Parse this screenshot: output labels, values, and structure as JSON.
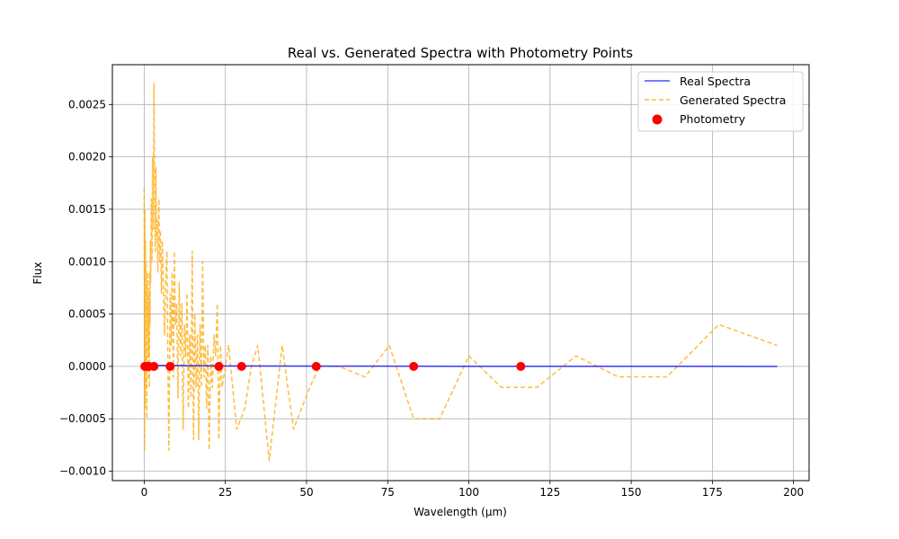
{
  "chart_data": {
    "type": "line",
    "title": "Real vs. Generated Spectra with Photometry Points",
    "xlabel": "Wavelength (µm)",
    "ylabel": "Flux",
    "xlim": [
      -9.8,
      204.8
    ],
    "ylim": [
      -0.00109,
      0.00288
    ],
    "xticks": [
      0,
      25,
      50,
      75,
      100,
      125,
      150,
      175,
      200
    ],
    "xtick_labels": [
      "0",
      "25",
      "50",
      "75",
      "100",
      "125",
      "150",
      "175",
      "200"
    ],
    "yticks": [
      -0.001,
      -0.0005,
      0,
      0.0005,
      0.001,
      0.0015,
      0.002,
      0.0025
    ],
    "ytick_labels": [
      "−0.0010",
      "−0.0005",
      "0.0000",
      "0.0005",
      "0.0010",
      "0.0015",
      "0.0020",
      "0.0025"
    ],
    "grid": true,
    "legend": {
      "placement": "top-right",
      "entries": [
        {
          "label": "Real Spectra",
          "style": "line",
          "color": "#0000ff"
        },
        {
          "label": "Generated Spectra",
          "style": "dashed",
          "color": "#ffa500"
        },
        {
          "label": "Photometry",
          "style": "marker",
          "color": "#ff0000"
        }
      ]
    },
    "series": [
      {
        "name": "Real Spectra",
        "color": "#0000ff",
        "style": "solid",
        "x": [
          0.2,
          1,
          3,
          8,
          23,
          30,
          53,
          83,
          116,
          150,
          195
        ],
        "y": [
          1e-05,
          1e-05,
          1e-05,
          1e-05,
          5e-06,
          4e-06,
          3e-06,
          2e-06,
          1e-06,
          1e-06,
          5e-07
        ]
      },
      {
        "name": "Generated Spectra",
        "color": "#ffa500",
        "style": "dashed",
        "x": [
          0.0,
          0.1,
          0.2,
          0.3,
          0.4,
          0.5,
          0.6,
          0.7,
          0.8,
          0.9,
          1.0,
          1.1,
          1.2,
          1.3,
          1.4,
          1.5,
          1.6,
          1.7,
          1.8,
          1.9,
          2.0,
          2.2,
          2.4,
          2.6,
          2.8,
          3.0,
          3.2,
          3.4,
          3.6,
          3.8,
          4.0,
          4.2,
          4.5,
          4.8,
          5.0,
          5.3,
          5.6,
          6.0,
          6.3,
          6.6,
          7.0,
          7.3,
          7.6,
          8.0,
          8.3,
          8.6,
          9.0,
          9.3,
          9.6,
          10.0,
          10.4,
          10.8,
          11.2,
          11.6,
          12.0,
          12.4,
          12.8,
          13.2,
          13.6,
          14.0,
          14.4,
          14.8,
          15.2,
          15.6,
          16.0,
          16.4,
          16.8,
          17.2,
          17.6,
          18.0,
          18.4,
          18.8,
          19.2,
          19.6,
          20.0,
          20.5,
          21.0,
          21.5,
          22.0,
          22.5,
          23.0,
          23.5,
          24.0,
          26.0,
          28.5,
          31.0,
          33.0,
          35.0,
          38.5,
          42.5,
          46.0,
          51.0,
          54.0,
          60.0,
          68.0,
          75.5,
          83.0,
          91.0,
          100.0,
          110.0,
          121.0,
          133.0,
          146.0,
          161.0,
          177.0,
          195.0
        ],
        "y": [
          0.0017,
          -0.0008,
          0.0015,
          -0.0004,
          0.0012,
          -0.0002,
          0.001,
          0.0002,
          -0.0005,
          0.0008,
          0.0003,
          0.0009,
          -0.0001,
          0.0006,
          0.0001,
          0.0007,
          -0.0002,
          0.0009,
          0.0004,
          0.0012,
          0.0008,
          0.0016,
          0.001,
          0.002,
          0.0013,
          0.0027,
          0.0018,
          0.0011,
          0.0019,
          0.0012,
          0.0014,
          0.0009,
          0.0016,
          0.001,
          0.0013,
          0.0007,
          0.0012,
          0.0006,
          0.0003,
          0.0008,
          0.0011,
          0.0,
          -0.0008,
          0.0007,
          0.0002,
          0.0009,
          -0.0001,
          0.0011,
          0.0004,
          0.0006,
          -0.0003,
          0.0008,
          0.0001,
          0.0006,
          -0.0006,
          0.0004,
          0.0001,
          0.0007,
          -0.0004,
          0.0003,
          -0.0003,
          0.0011,
          -0.0007,
          0.0005,
          -0.0002,
          0.0003,
          -0.0007,
          0.0004,
          -0.0002,
          0.001,
          -0.0001,
          0.0002,
          -0.0004,
          0.0002,
          -0.0008,
          0.0001,
          -0.0002,
          0.0003,
          0.0001,
          0.0006,
          -0.0007,
          0.0002,
          -0.0002,
          0.0002,
          -0.0006,
          -0.0004,
          0.0,
          0.0002,
          -0.0009,
          0.0002,
          -0.0006,
          -0.0002,
          0.0,
          0.0,
          -0.0001,
          0.0002,
          -0.0005,
          -0.0005,
          0.0001,
          -0.0002,
          -0.0002,
          0.0001,
          -0.0001,
          -0.0001,
          0.0004,
          0.0002
        ]
      },
      {
        "name": "Photometry",
        "color": "#ff0000",
        "style": "marker",
        "x": [
          0.2,
          1.0,
          1.5,
          3.0,
          8.0,
          23.0,
          30.0,
          53.0,
          83.0,
          116.0
        ],
        "y": [
          0,
          0,
          0,
          0,
          0,
          0,
          0,
          0,
          0,
          0
        ]
      }
    ]
  }
}
